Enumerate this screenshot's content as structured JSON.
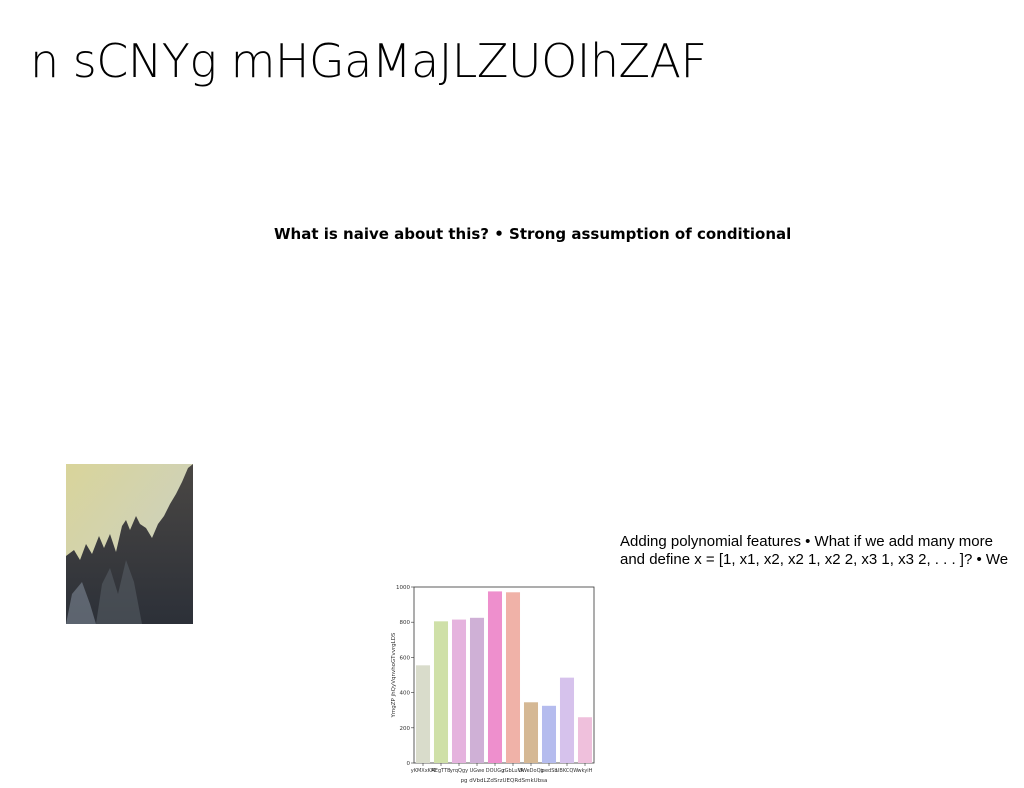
{
  "slide": {
    "title": "n sCNYg mHGaMaJLZUOIhZAF",
    "subtitle": "What is naive about this? • Strong assumption of conditional",
    "paragraph_lines": [
      "Adding polynomial features • What if we add many more",
      "and define x = [1, x1, x2, x2 1, x2 2, x3 1, x3 2, . . . ]? • We"
    ],
    "photo_icon": "mountain-landscape-image"
  },
  "chart_data": {
    "type": "bar",
    "categories": [
      "yKMXxKM",
      "AEgTTB",
      "yrqQgy",
      "UGwe",
      "DOUGg",
      "zGbLuVk",
      "UWeDoQp",
      "ipedSb",
      "UBKCQW",
      "wkyiH"
    ],
    "values": [
      555,
      805,
      815,
      825,
      975,
      970,
      345,
      325,
      485,
      260
    ],
    "colors": [
      "#d9dccb",
      "#cfe0a8",
      "#e5b3de",
      "#cfb0d6",
      "#ee8fcd",
      "#f0b2a8",
      "#d5b894",
      "#b5bcee",
      "#d6c2ec",
      "#efc0dc"
    ],
    "xlabel": "pg dVbdLZdSrzUEQRdSmkUbsa",
    "ylabel": "YmgZP jhQyVqnvhoGTvvrgLDS",
    "ylim": [
      0,
      1000
    ],
    "yticks": [
      "0",
      "200",
      "400",
      "600",
      "800",
      "1000"
    ]
  }
}
